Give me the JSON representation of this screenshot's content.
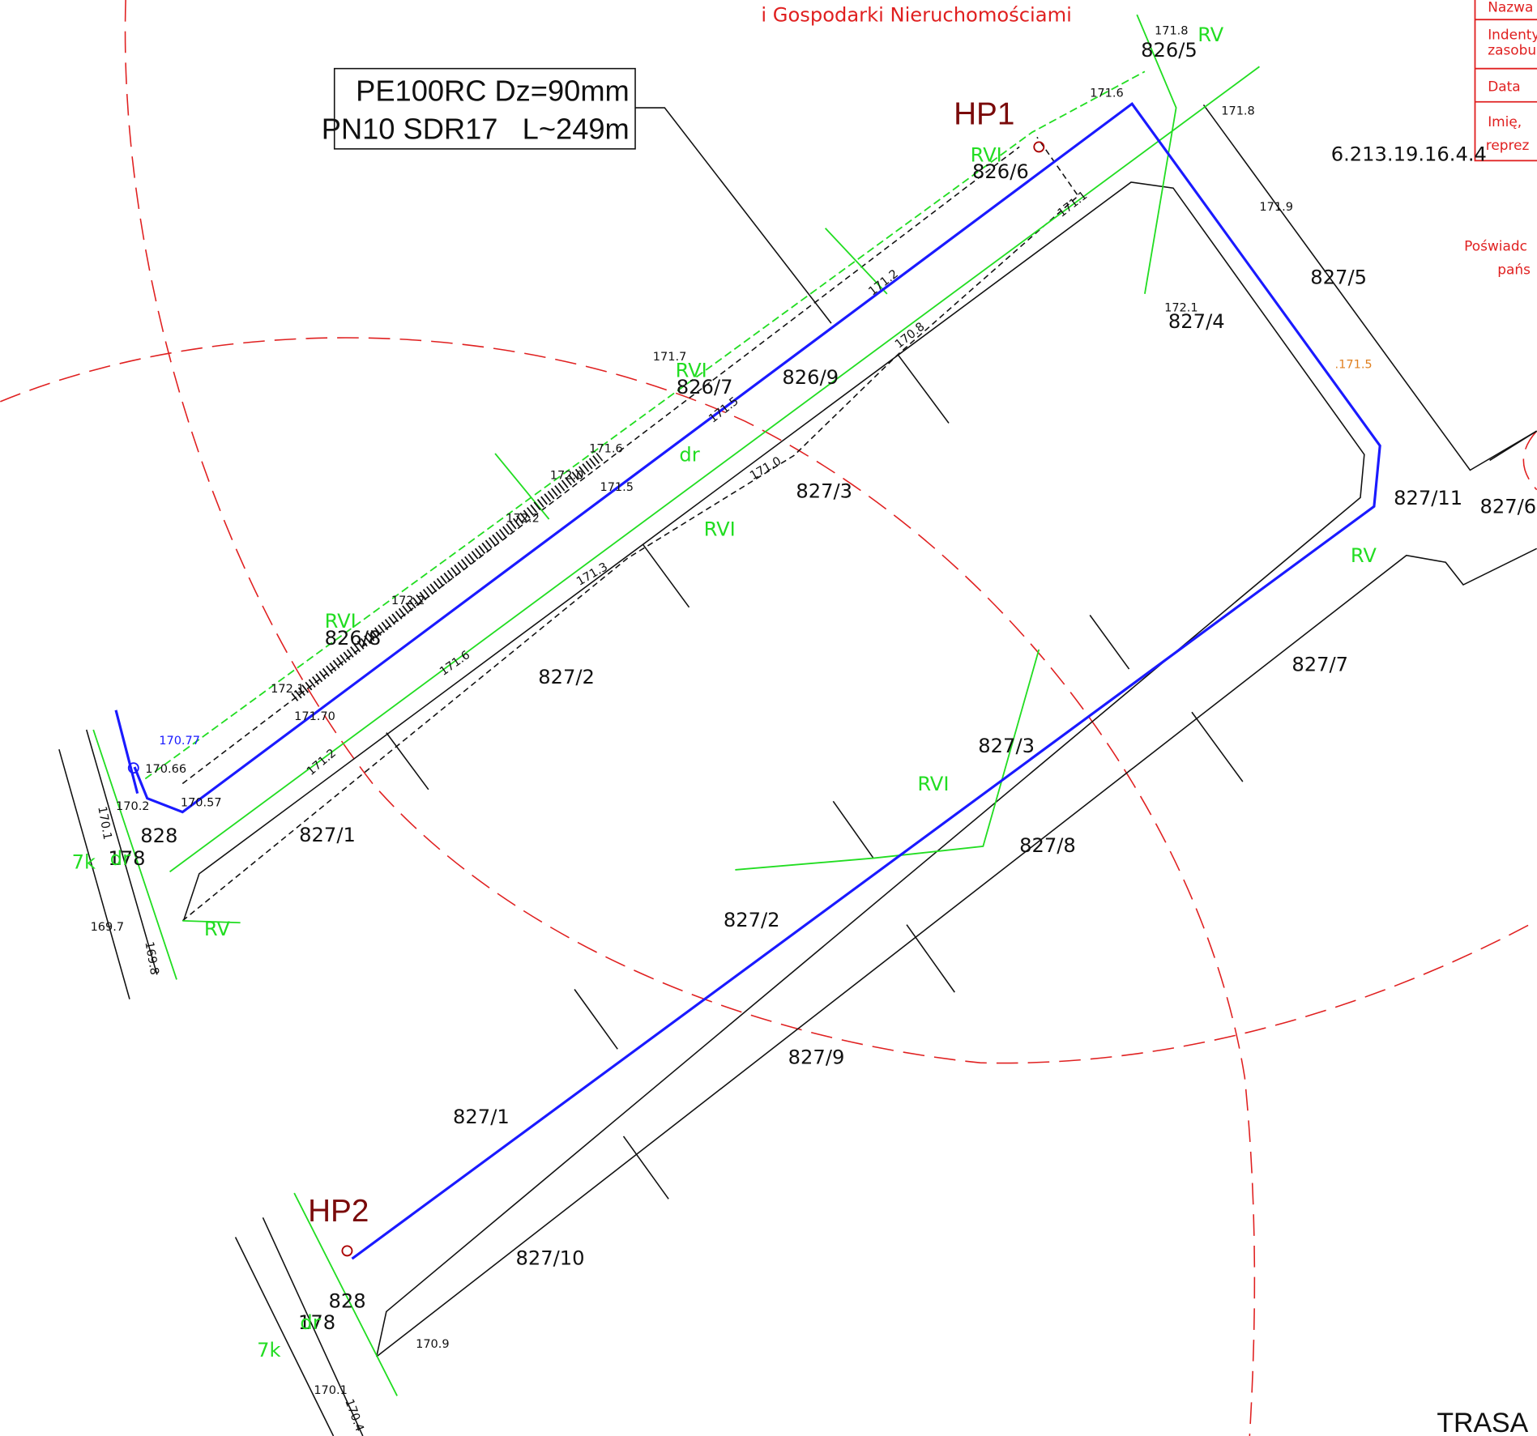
{
  "header": {
    "subtitle": "i Gospodarki Nieruchomościami"
  },
  "title_block": {
    "rows": [
      "Nazwa",
      "Indenty",
      "zasobu",
      "Data",
      "Imię,",
      "reprez"
    ]
  },
  "pipe_label": {
    "line1": "PE100RC Dz=90mm",
    "line2": "PN10 SDR17   L~249m"
  },
  "points": [
    {
      "label": "HP1"
    },
    {
      "label": "HP2"
    }
  ],
  "parcels": [
    "826/5",
    "826/6",
    "827/5",
    "827/4",
    "826/7",
    "826/9",
    "827/3",
    "827/11",
    "827/6",
    "826/8",
    "827/2",
    "827/7",
    "827/3",
    "827/8",
    "827/1",
    "828",
    "178",
    "827/2",
    "827/9",
    "827/1",
    "827/10",
    "828",
    "178"
  ],
  "sheet_id": "6.213.19.16.4.4",
  "elevations": [
    "171.8",
    "171.6",
    "171.8",
    "171.9",
    "171.7",
    "171.6",
    "172.0",
    "171.5",
    "172.2",
    "172.2",
    "172.1",
    "171.70",
    "170.66",
    "170.2",
    "170.57",
    "169.7",
    "170.9",
    "170.1",
    "172.1",
    "171.5",
    "171.1",
    "171.2",
    "170.8",
    "171.0",
    "171.3",
    "171.6",
    "171.2",
    "170.4",
    "169.8",
    "170.1"
  ],
  "highlighted_elevations": [
    ".171.5",
    "170.77"
  ],
  "land_classes": [
    "RV",
    "RVI",
    "RVI",
    "dr",
    "RVI",
    "RV",
    "RVI",
    "RVI",
    "RV",
    "7k",
    "dr",
    "7k",
    "dr"
  ],
  "side_note": [
    "Poświadc",
    "pańs"
  ],
  "footer": "TRASA"
}
